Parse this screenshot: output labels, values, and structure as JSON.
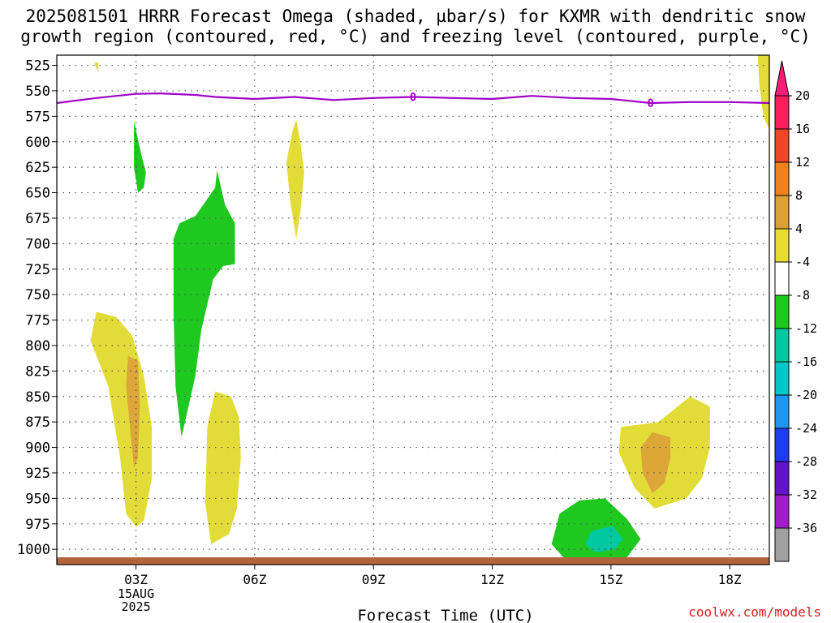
{
  "header": {
    "title_line1": "2025081501 HRRR Forecast Omega (shaded, µbar/s) for KXMR with dendritic snow",
    "title_line2": "growth region (contoured, red, °C) and freezing level (contoured, purple, °C)"
  },
  "footer": {
    "credit": "coolwx.com/models"
  },
  "chart_data": {
    "type": "contour",
    "xlabel": "Forecast Time (UTC)",
    "ylabel": "",
    "x_ticks": [
      "03Z",
      "06Z",
      "09Z",
      "12Z",
      "15Z",
      "18Z"
    ],
    "x_tick_hours": [
      3,
      6,
      9,
      12,
      15,
      18
    ],
    "x_date_label": [
      "15AUG",
      "2025"
    ],
    "xlim": [
      1,
      19
    ],
    "ylim_hpa": [
      515,
      1015
    ],
    "y_ticks": [
      525,
      550,
      575,
      600,
      625,
      650,
      675,
      700,
      725,
      750,
      775,
      800,
      825,
      850,
      875,
      900,
      925,
      950,
      975,
      1000
    ],
    "grid": true,
    "freezing_level": {
      "label": "0",
      "color": "#a000c8",
      "label_hours": [
        10,
        16
      ],
      "points": [
        [
          1,
          562
        ],
        [
          2,
          557
        ],
        [
          3,
          553
        ],
        [
          3.6,
          552.5
        ],
        [
          4.5,
          554
        ],
        [
          5,
          556
        ],
        [
          6,
          558
        ],
        [
          7,
          556
        ],
        [
          8,
          559
        ],
        [
          9,
          557
        ],
        [
          10,
          556
        ],
        [
          11,
          557
        ],
        [
          12,
          558
        ],
        [
          13,
          555
        ],
        [
          14,
          557
        ],
        [
          15,
          558
        ],
        [
          16,
          562
        ],
        [
          17,
          561
        ],
        [
          18,
          561
        ],
        [
          19,
          562
        ]
      ]
    },
    "omega_regions": [
      {
        "level": 4,
        "color": "#e2dc38",
        "points": [
          [
            1.95,
            523
          ],
          [
            2.05,
            522
          ],
          [
            2.05,
            532
          ]
        ]
      },
      {
        "level": 4,
        "color": "#e2dc38",
        "points": [
          [
            18.7,
            510
          ],
          [
            19,
            510
          ],
          [
            19,
            588
          ],
          [
            18.85,
            575
          ],
          [
            18.75,
            545
          ]
        ]
      },
      {
        "level": 4,
        "color": "#e2dc38",
        "points": [
          [
            2.0,
            767
          ],
          [
            2.5,
            772
          ],
          [
            2.9,
            790
          ],
          [
            3.2,
            830
          ],
          [
            3.4,
            880
          ],
          [
            3.4,
            930
          ],
          [
            3.2,
            972
          ],
          [
            3.0,
            978
          ],
          [
            2.75,
            965
          ],
          [
            2.6,
            910
          ],
          [
            2.3,
            840
          ],
          [
            1.85,
            795
          ]
        ]
      },
      {
        "level": 8,
        "color": "#dda638",
        "points": [
          [
            2.8,
            810
          ],
          [
            3.05,
            815
          ],
          [
            3.1,
            860
          ],
          [
            3.05,
            910
          ],
          [
            2.95,
            920
          ],
          [
            2.85,
            880
          ],
          [
            2.75,
            840
          ]
        ]
      },
      {
        "level": 4,
        "color": "#e2dc38",
        "points": [
          [
            5.0,
            845
          ],
          [
            5.4,
            850
          ],
          [
            5.6,
            870
          ],
          [
            5.65,
            910
          ],
          [
            5.55,
            960
          ],
          [
            5.35,
            985
          ],
          [
            4.9,
            995
          ],
          [
            4.75,
            955
          ],
          [
            4.8,
            880
          ]
        ]
      },
      {
        "level": 4,
        "color": "#e2dc38",
        "points": [
          [
            7.05,
            578
          ],
          [
            7.15,
            600
          ],
          [
            7.25,
            630
          ],
          [
            7.15,
            670
          ],
          [
            7.05,
            695
          ],
          [
            6.9,
            660
          ],
          [
            6.8,
            620
          ],
          [
            6.95,
            590
          ]
        ]
      },
      {
        "level": 4,
        "color": "#e2dc38",
        "points": [
          [
            16.2,
            875
          ],
          [
            17,
            850
          ],
          [
            17.5,
            860
          ],
          [
            17.5,
            900
          ],
          [
            17.3,
            930
          ],
          [
            16.9,
            950
          ],
          [
            16.1,
            960
          ],
          [
            15.6,
            940
          ],
          [
            15.2,
            905
          ],
          [
            15.25,
            880
          ]
        ]
      },
      {
        "level": 8,
        "color": "#dda638",
        "points": [
          [
            15.75,
            900
          ],
          [
            16.05,
            885
          ],
          [
            16.5,
            890
          ],
          [
            16.5,
            910
          ],
          [
            16.35,
            935
          ],
          [
            16.05,
            945
          ],
          [
            15.8,
            925
          ]
        ]
      },
      {
        "level": -4,
        "color": "#1ec81e",
        "points": [
          [
            2.95,
            580
          ],
          [
            3.15,
            615
          ],
          [
            3.25,
            630
          ],
          [
            3.2,
            645
          ],
          [
            3.05,
            650
          ],
          [
            2.95,
            625
          ]
        ]
      },
      {
        "level": -4,
        "color": "#1ec81e",
        "points": [
          [
            4.5,
            673
          ],
          [
            5.0,
            645
          ],
          [
            5.05,
            628
          ],
          [
            5.25,
            662
          ],
          [
            5.5,
            680
          ],
          [
            5.5,
            720
          ],
          [
            5.2,
            722
          ],
          [
            4.95,
            735
          ],
          [
            4.65,
            785
          ],
          [
            4.5,
            830
          ],
          [
            4.15,
            890
          ],
          [
            4.0,
            840
          ],
          [
            3.95,
            770
          ],
          [
            3.95,
            695
          ],
          [
            4.1,
            680
          ]
        ]
      },
      {
        "level": -4,
        "color": "#1ec81e",
        "points": [
          [
            13.7,
            965
          ],
          [
            14.2,
            952
          ],
          [
            14.85,
            950
          ],
          [
            15.4,
            970
          ],
          [
            15.75,
            990
          ],
          [
            15.4,
            1008
          ],
          [
            14.5,
            1012
          ],
          [
            13.8,
            1008
          ],
          [
            13.5,
            995
          ]
        ]
      },
      {
        "level": -8,
        "color": "#00c8a0",
        "points": [
          [
            14.5,
            982
          ],
          [
            15.05,
            977
          ],
          [
            15.3,
            990
          ],
          [
            15.1,
            1000
          ],
          [
            14.6,
            1003
          ],
          [
            14.35,
            995
          ]
        ]
      }
    ],
    "terrain": {
      "color": "#b4643c",
      "label": ""
    },
    "colorbar": {
      "labels": [
        "20",
        "16",
        "12",
        "8",
        "4",
        "-4",
        "-8",
        "-12",
        "-16",
        "-20",
        "-24",
        "-28",
        "-32",
        "-36"
      ],
      "colors": [
        "#fa1e5a",
        "#f04628",
        "#f0821e",
        "#dca036",
        "#e6dc32",
        "#ffffff",
        "#1ec81e",
        "#00c8a0",
        "#00c8c8",
        "#1e96f0",
        "#1e3cf0",
        "#6414c8",
        "#a01ec8",
        "#a0a0a0"
      ],
      "top_color": "#fa1e78",
      "bottom_color": "#000000"
    }
  }
}
